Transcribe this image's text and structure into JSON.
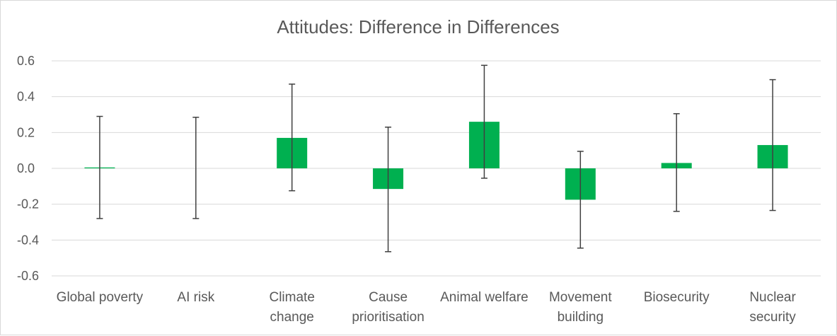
{
  "chart_data": {
    "type": "bar",
    "title": "Attitudes: Difference in Differences",
    "xlabel": "",
    "ylabel": "",
    "ylim": [
      -0.6,
      0.6
    ],
    "yticks": [
      0.6,
      0.4,
      0.2,
      0.0,
      -0.2,
      -0.4,
      -0.6
    ],
    "ytick_labels": [
      "0.6",
      "0.4",
      "0.2",
      "0.0",
      "-0.2",
      "-0.4",
      "-0.6"
    ],
    "grid": true,
    "categories": [
      [
        "Global poverty"
      ],
      [
        "AI risk"
      ],
      [
        "Climate",
        "change"
      ],
      [
        "Cause",
        "prioritisation"
      ],
      [
        "Animal welfare"
      ],
      [
        "Movement",
        "building"
      ],
      [
        "Biosecurity"
      ],
      [
        "Nuclear",
        "security"
      ]
    ],
    "values": [
      0.005,
      0.0,
      0.17,
      -0.115,
      0.26,
      -0.175,
      0.03,
      0.13
    ],
    "error_low": [
      -0.28,
      -0.28,
      -0.125,
      -0.465,
      -0.055,
      -0.445,
      -0.24,
      -0.235
    ],
    "error_high": [
      0.29,
      0.285,
      0.47,
      0.23,
      0.575,
      0.095,
      0.305,
      0.495
    ],
    "bar_color": "#00b050",
    "error_color": "#404040",
    "grid_color": "#d9d9d9"
  }
}
